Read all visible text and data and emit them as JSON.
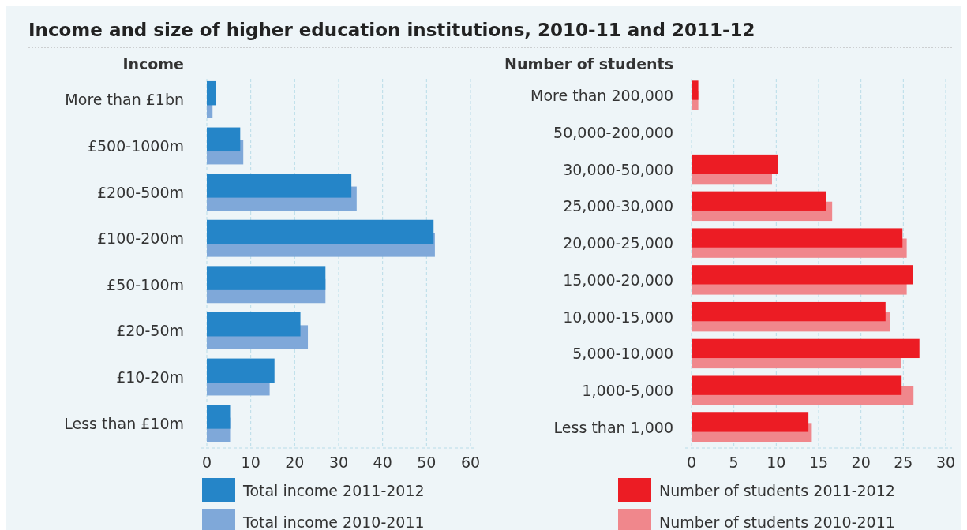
{
  "chart_data": [
    {
      "type": "bar",
      "orientation": "horizontal",
      "title": "Income and size of higher education institutions, 2010-11 and 2011-12",
      "ylabel": "Income",
      "categories": [
        "More than £1bn",
        "£500-1000m",
        "£200-500m",
        "£100-200m",
        "£50-100m",
        "£20-50m",
        "£10-20m",
        "Less than £10m"
      ],
      "series": [
        {
          "name": "Total income 2011-2012",
          "color": "#2585c8",
          "values": [
            2.1,
            7.6,
            32.9,
            51.6,
            27.0,
            21.3,
            15.4,
            5.3
          ]
        },
        {
          "name": "Total income 2010-2011",
          "color": "#7fa8d9",
          "values": [
            1.3,
            8.3,
            34.1,
            51.9,
            27.0,
            23.0,
            14.3,
            5.3
          ]
        }
      ],
      "xlim": [
        0,
        60
      ],
      "xticks": [
        0,
        10,
        20,
        30,
        40,
        50,
        60
      ],
      "grid": "x",
      "legend": "bottom"
    },
    {
      "type": "bar",
      "orientation": "horizontal",
      "ylabel": "Number of students",
      "categories": [
        "More than 200,000",
        "50,000-200,000",
        "30,000-50,000",
        "25,000-30,000",
        "20,000-25,000",
        "15,000-20,000",
        "10,000-15,000",
        "5,000-10,000",
        "1,000-5,000",
        "Less than 1,000"
      ],
      "series": [
        {
          "name": "Number of students 2011-2012",
          "color": "#ec1c24",
          "values": [
            0.8,
            null,
            10.2,
            15.9,
            24.9,
            26.1,
            22.9,
            26.9,
            24.8,
            13.8
          ]
        },
        {
          "name": "Number of students 2010-2011",
          "color": "#f0878c",
          "values": [
            0.8,
            null,
            9.5,
            16.6,
            25.4,
            25.4,
            23.4,
            24.7,
            26.2,
            14.2
          ]
        }
      ],
      "xlim": [
        0,
        30
      ],
      "xticks": [
        0,
        5,
        10,
        15,
        20,
        25,
        30
      ],
      "grid": "x",
      "legend": "bottom"
    }
  ]
}
